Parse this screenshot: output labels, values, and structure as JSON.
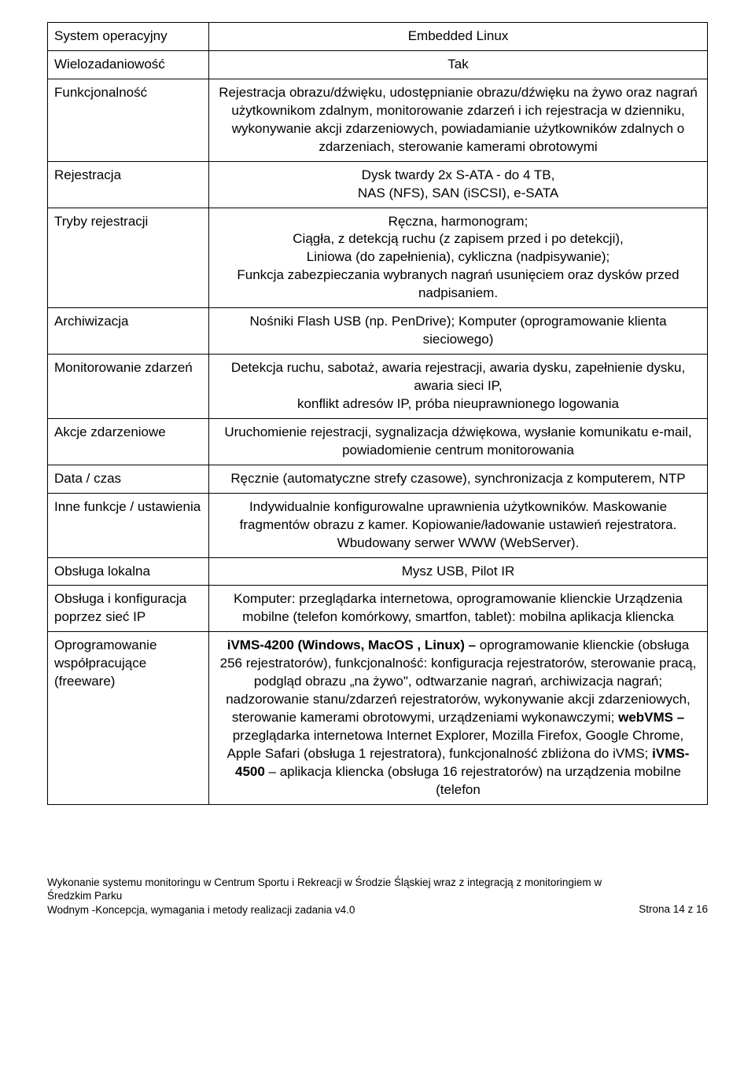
{
  "rows": [
    {
      "label": "System operacyjny",
      "value": "Embedded Linux",
      "align": "center"
    },
    {
      "label": "Wielozadaniowość",
      "value": "Tak",
      "align": "center"
    },
    {
      "label": "Funkcjonalność",
      "value": "Rejestracja obrazu/dźwięku, udostępnianie obrazu/dźwięku na żywo oraz nagrań użytkownikom zdalnym, monitorowanie zdarzeń i ich rejestracja w dzienniku, wykonywanie akcji zdarzeniowych, powiadamianie użytkowników zdalnych o zdarzeniach, sterowanie kamerami obrotowymi",
      "align": "center"
    },
    {
      "label": "Rejestracja",
      "value": "Dysk twardy 2x S-ATA - do 4 TB,\nNAS (NFS), SAN (iSCSI), e-SATA",
      "align": "center"
    },
    {
      "label": "Tryby rejestracji",
      "value": "Ręczna, harmonogram;\nCiągła, z detekcją ruchu (z zapisem przed i po detekcji),\nLiniowa (do zapełnienia), cykliczna (nadpisywanie);\nFunkcja zabezpieczania wybranych nagrań usunięciem oraz dysków przed nadpisaniem.",
      "align": "center"
    },
    {
      "label": "Archiwizacja",
      "value": "Nośniki Flash USB (np. PenDrive); Komputer (oprogramowanie klienta sieciowego)",
      "align": "center"
    },
    {
      "label": "Monitorowanie zdarzeń",
      "value": "Detekcja ruchu, sabotaż, awaria rejestracji, awaria dysku, zapełnienie dysku, awaria sieci IP,\nkonflikt adresów IP, próba nieuprawnionego logowania",
      "align": "center"
    },
    {
      "label": "Akcje zdarzeniowe",
      "value": "Uruchomienie rejestracji, sygnalizacja dźwiękowa, wysłanie komunikatu e-mail,\npowiadomienie centrum monitorowania",
      "align": "center"
    },
    {
      "label": "Data / czas",
      "value": "Ręcznie (automatyczne strefy czasowe), synchronizacja z komputerem, NTP",
      "align": "center"
    },
    {
      "label": "Inne funkcje / ustawienia",
      "value": "Indywidualnie konfigurowalne uprawnienia użytkowników. Maskowanie fragmentów obrazu z kamer. Kopiowanie/ładowanie ustawień rejestratora. Wbudowany serwer WWW (WebServer).",
      "align": "center"
    },
    {
      "label": "Obsługa lokalna",
      "value": "Mysz USB, Pilot IR",
      "align": "center"
    },
    {
      "label": "Obsługa i konfiguracja poprzez sieć IP",
      "value": "Komputer: przeglądarka internetowa, oprogramowanie klienckie Urządzenia mobilne (telefon komórkowy, smartfon, tablet): mobilna aplikacja kliencka",
      "align": "center"
    }
  ],
  "software_row": {
    "label": "Oprogramowanie współpracujące (freeware)",
    "parts": [
      {
        "bold": true,
        "text": "iVMS-4200 (Windows, MacOS , Linux) – "
      },
      {
        "bold": false,
        "text": "oprogramowanie klienckie (obsługa 256 rejestratorów), funkcjonalność: konfiguracja rejestratorów, sterowanie pracą, podgląd obrazu „na żywo\", odtwarzanie nagrań, archiwizacja nagrań; nadzorowanie stanu/zdarzeń rejestratorów, wykonywanie akcji zdarzeniowych, sterowanie kamerami obrotowymi, urządzeniami wykonawczymi; "
      },
      {
        "bold": true,
        "text": "webVMS – "
      },
      {
        "bold": false,
        "text": "przeglądarka internetowa Internet Explorer, Mozilla Firefox, Google Chrome, Apple Safari (obsługa 1 rejestratora), funkcjonalność zbliżona do iVMS; "
      },
      {
        "bold": true,
        "text": "iVMS-4500"
      },
      {
        "bold": false,
        "text": " – aplikacja kliencka (obsługa 16 rejestratorów) na urządzenia mobilne (telefon"
      }
    ]
  },
  "footer": {
    "left_line1": "Wykonanie systemu monitoringu w Centrum Sportu i Rekreacji w Środzie Śląskiej wraz z integracją z  monitoringiem w  Średzkim Parku",
    "left_line2": "Wodnym  -Koncepcja, wymagania i metody realizacji zadania        v4.0",
    "right": "Strona 14 z 16"
  }
}
